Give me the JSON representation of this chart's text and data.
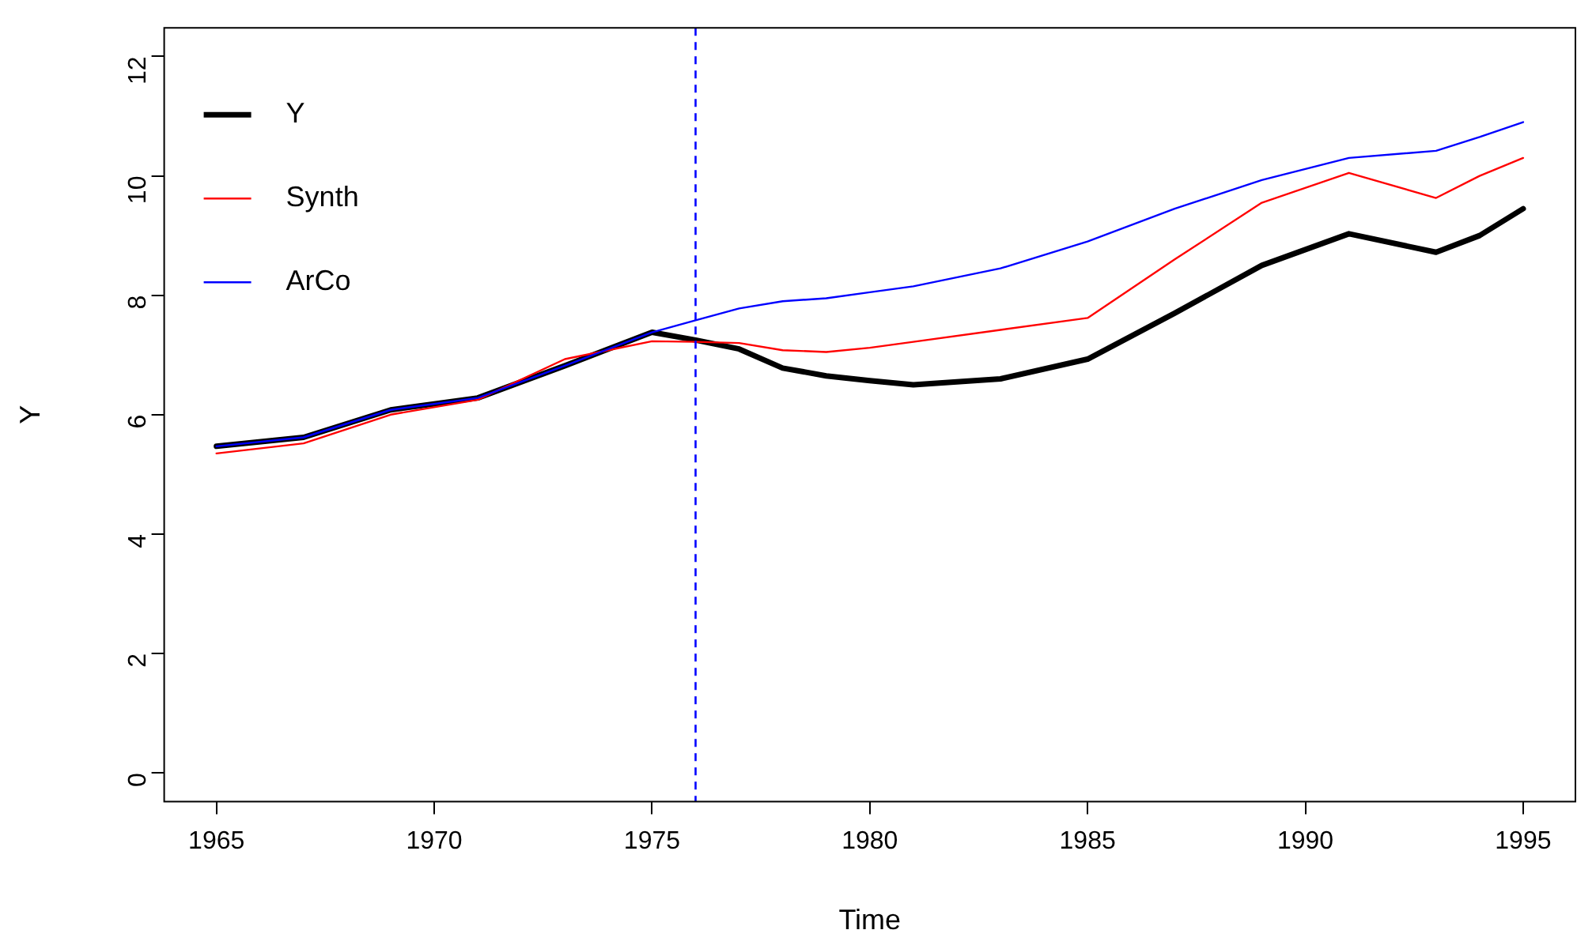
{
  "chart_data": {
    "type": "line",
    "xlabel": "Time",
    "ylabel": "Y",
    "x": [
      1965,
      1967,
      1969,
      1971,
      1973,
      1975,
      1976,
      1977,
      1978,
      1979,
      1980,
      1981,
      1983,
      1985,
      1987,
      1989,
      1991,
      1993,
      1994,
      1995
    ],
    "series": [
      {
        "name": "Y",
        "color": "#000000",
        "values": [
          5.47,
          5.62,
          6.08,
          6.28,
          6.82,
          7.38,
          7.25,
          7.1,
          6.78,
          6.65,
          6.57,
          6.5,
          6.6,
          6.93,
          7.7,
          8.5,
          9.03,
          8.72,
          9.0,
          9.45
        ]
      },
      {
        "name": "Synth",
        "color": "#ff0000",
        "values": [
          5.35,
          5.52,
          6.0,
          6.25,
          6.93,
          7.23,
          7.22,
          7.2,
          7.08,
          7.05,
          7.12,
          7.22,
          7.42,
          7.62,
          8.6,
          9.55,
          10.05,
          9.63,
          10.0,
          10.3
        ]
      },
      {
        "name": "ArCo",
        "color": "#0000ff",
        "values": [
          5.47,
          5.62,
          6.08,
          6.28,
          6.82,
          7.38,
          7.58,
          7.78,
          7.9,
          7.95,
          8.05,
          8.15,
          8.45,
          8.9,
          9.45,
          9.93,
          10.3,
          10.42,
          10.65,
          10.9
        ]
      }
    ],
    "xlim": [
      1963.8,
      1996.2
    ],
    "xticks": [
      1965,
      1970,
      1975,
      1980,
      1985,
      1990,
      1995
    ],
    "ylim": [
      -0.48,
      12.48
    ],
    "yticks": [
      0,
      2,
      4,
      6,
      8,
      10,
      12
    ],
    "ref_lines": [
      {
        "axis": "x",
        "value": 1976,
        "color": "#0000ff",
        "line_style": "dashed"
      }
    ],
    "grid": false,
    "legend": "top left",
    "marker": "none",
    "line_style": "solid"
  }
}
